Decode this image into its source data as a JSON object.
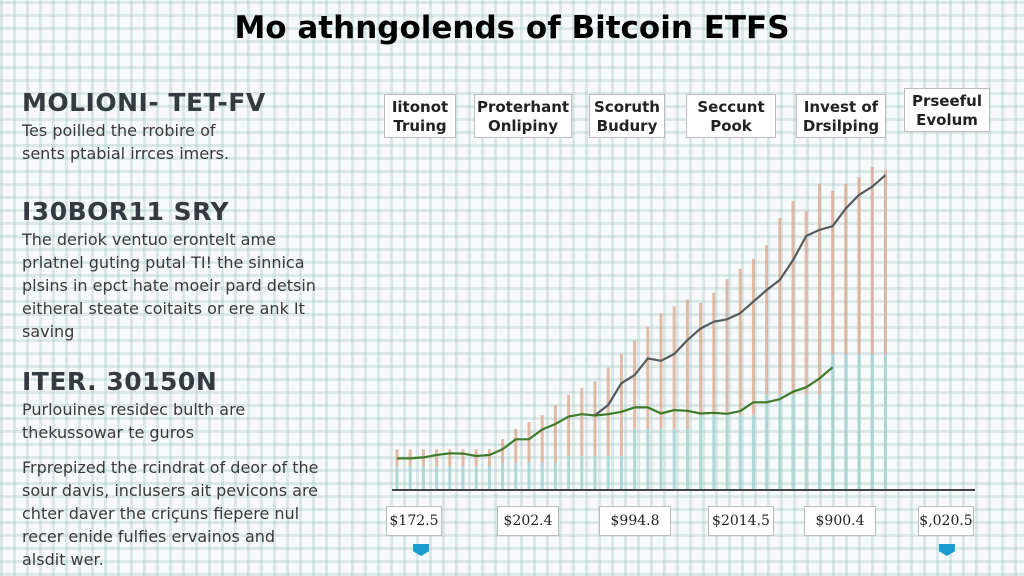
{
  "title": "Mo athngolends of Bitcoin ETFS",
  "sections": [
    {
      "heading": "MOLIONI- TET-FV",
      "paragraphs": [
        "Tes poilled the rrobire of",
        "sents ptabial irrces imers."
      ]
    },
    {
      "heading": "I30BOR11 SRY",
      "paragraphs": [
        "The deriok ventuo erontelt ame",
        "prlatnel guting putal TI! the sinnica",
        "plsins in epct hate moeir pard detsin",
        "eitheral steate coitaits or ere ank It",
        "saving"
      ]
    },
    {
      "heading": "ITER. 30150N",
      "paragraphs": [
        "Purlouines residec bulth are",
        "thekussowar te guros"
      ]
    },
    {
      "heading": "",
      "paragraphs": [
        "Frprepized the rcindrat of deor of the",
        "sour davis, inclusers ait pevicons are",
        "chter daver the criçuns fiepere nul",
        "recer enide fulfies ervainos and",
        "alsdit wer."
      ]
    }
  ],
  "chart_data": {
    "type": "line",
    "title": "",
    "xlabel": "",
    "ylabel": "",
    "ylim": [
      0,
      100
    ],
    "grid": true,
    "top_labels": [
      "Iitonot Truing",
      "Proterhant Onlipiny",
      "Scoruth Budury",
      "Seccunt Pook",
      "Invest of Drsilping",
      "Prseeful Evolum"
    ],
    "value_labels": [
      "$172.5",
      "$202.4",
      "$994.8",
      "$2014.5",
      "$900.4",
      "$,020.5"
    ],
    "series": [
      {
        "color": "#555a5c",
        "values": [
          null,
          null,
          null,
          null,
          null,
          null,
          null,
          null,
          null,
          null,
          null,
          null,
          null,
          null,
          null,
          22,
          25,
          31.4,
          33.8,
          38.7,
          38,
          40,
          44.1,
          47.5,
          49.5,
          50.2,
          52,
          55.4,
          58.8,
          61.8,
          67.6,
          74.7,
          76.5,
          77.6,
          82.8,
          86.8,
          89.2,
          92.6
        ]
      },
      {
        "color": "#3f7a2a",
        "values": [
          9.3,
          9.3,
          9.6,
          10.3,
          10.8,
          10.7,
          10,
          10.3,
          12,
          14.9,
          14.9,
          17.8,
          19.4,
          21.6,
          22.3,
          21.9,
          22.3,
          23,
          24.3,
          24.3,
          22.5,
          23.5,
          23.3,
          22.5,
          22.7,
          22.4,
          23.2,
          25.8,
          25.8,
          26.7,
          28.9,
          30.2,
          32.8,
          36.1,
          null,
          null,
          null,
          null
        ]
      }
    ],
    "bars": {
      "lower_color": "#9fd0cc",
      "upper_color": "#d9a58a",
      "lower": [
        7,
        7,
        7,
        7,
        7,
        7,
        7,
        7,
        8,
        8,
        8,
        8,
        8,
        10,
        10,
        10,
        10,
        10,
        18,
        18,
        18,
        18,
        18,
        22,
        22,
        22,
        22,
        22,
        28,
        28,
        28,
        28,
        28,
        40,
        40,
        40,
        40,
        40
      ],
      "upper": [
        12,
        12,
        12,
        12,
        12,
        12,
        12,
        12,
        15,
        18,
        20,
        22,
        25,
        28,
        30,
        32,
        36,
        40,
        44,
        48,
        52,
        54,
        56,
        55,
        58,
        62,
        65,
        68,
        72,
        80,
        85,
        82,
        90,
        88,
        90,
        92,
        95,
        94
      ]
    },
    "marker_color": "#1a9ccc"
  }
}
